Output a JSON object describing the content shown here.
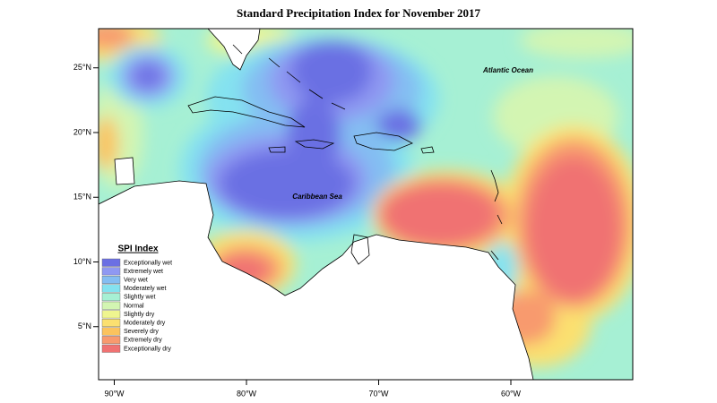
{
  "map": {
    "title": "Standard Precipitation Index for November 2017",
    "labels": {
      "atlantic": "Atlantic Ocean",
      "caribbean": "Caribbean Sea"
    },
    "lat_ticks": [
      {
        "value": 25,
        "label": "25°N"
      },
      {
        "value": 20,
        "label": "20°N"
      },
      {
        "value": 15,
        "label": "15°N"
      },
      {
        "value": 10,
        "label": "10°N"
      },
      {
        "value": 5,
        "label": "5°N"
      }
    ],
    "lon_ticks": [
      {
        "value": -90,
        "label": "90°W"
      },
      {
        "value": -80,
        "label": "80°W"
      },
      {
        "value": -70,
        "label": "70°W"
      },
      {
        "value": -60,
        "label": "60°W"
      }
    ],
    "legend": {
      "title": "SPI Index",
      "items": [
        {
          "label": "Exceptionally wet",
          "color": "#6b6fe3"
        },
        {
          "label": "Extremely wet",
          "color": "#8f98f2"
        },
        {
          "label": "Very wet",
          "color": "#84bdf2"
        },
        {
          "label": "Moderately wet",
          "color": "#84e2f0"
        },
        {
          "label": "Slightly wet",
          "color": "#a6f0d4"
        },
        {
          "label": "Normal",
          "color": "#d3f5b2"
        },
        {
          "label": "Slightly dry",
          "color": "#eff58f"
        },
        {
          "label": "Moderately dry",
          "color": "#fbe070"
        },
        {
          "label": "Severely dry",
          "color": "#fbc35e"
        },
        {
          "label": "Extremely dry",
          "color": "#f89a6e"
        },
        {
          "label": "Exceptionally dry",
          "color": "#f07272"
        }
      ]
    }
  }
}
